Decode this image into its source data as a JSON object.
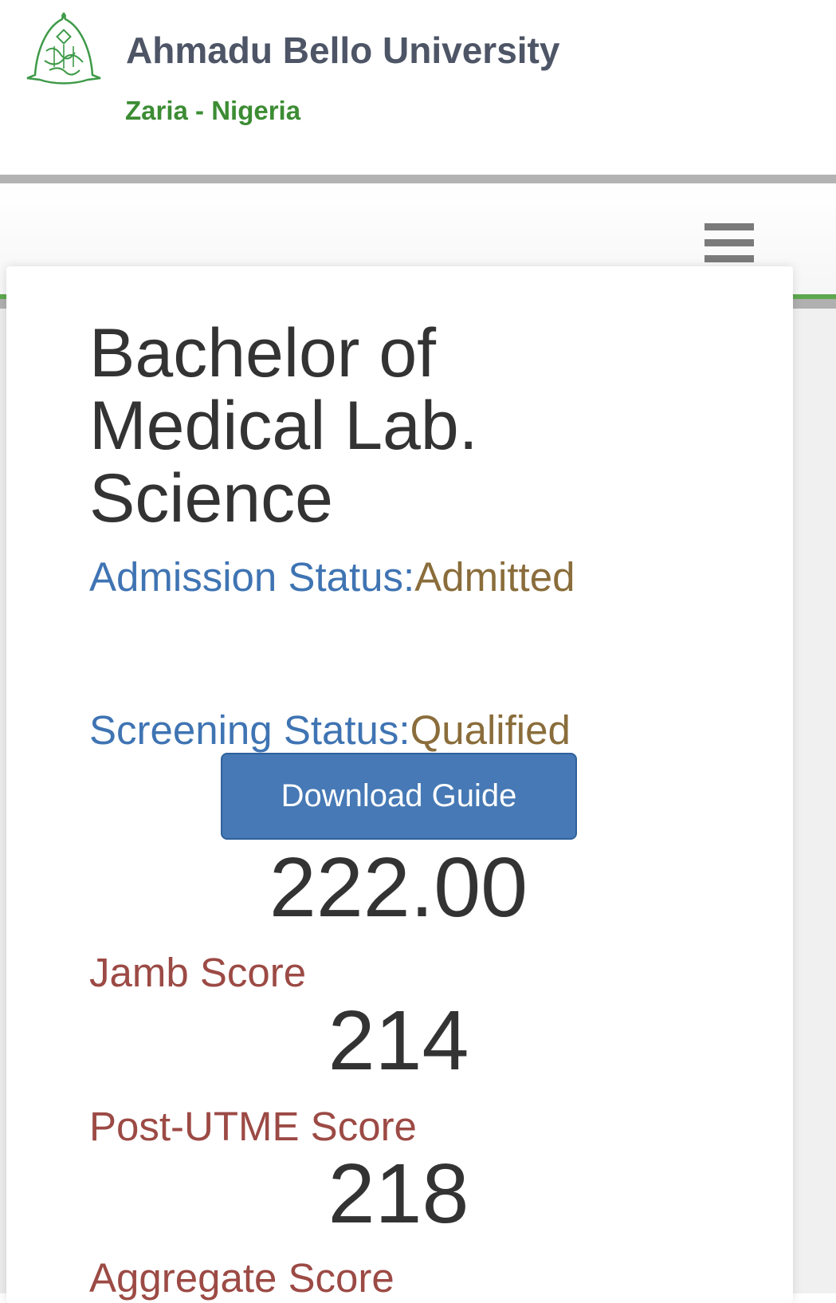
{
  "header": {
    "university_name": "Ahmadu Bello University",
    "location": "Zaria - Nigeria",
    "logo_icon": "abu-crest-logo",
    "brand_green": "#3c8c33"
  },
  "nav": {
    "menu_icon": "hamburger-menu-icon"
  },
  "result": {
    "programme": "Bachelor of Medical Lab. Science",
    "admission_status_label": "Admission Status:",
    "admission_status_value": "Admitted",
    "screening_status_label": "Screening Status:",
    "screening_status_value": "Qualified",
    "download_button": "Download Guide",
    "aggregate_value": "222.00",
    "jamb_label": "Jamb Score",
    "jamb_value": "214",
    "post_utme_label": "Post-UTME Score",
    "post_utme_value": "218",
    "aggregate_label": "Aggregate Score"
  }
}
